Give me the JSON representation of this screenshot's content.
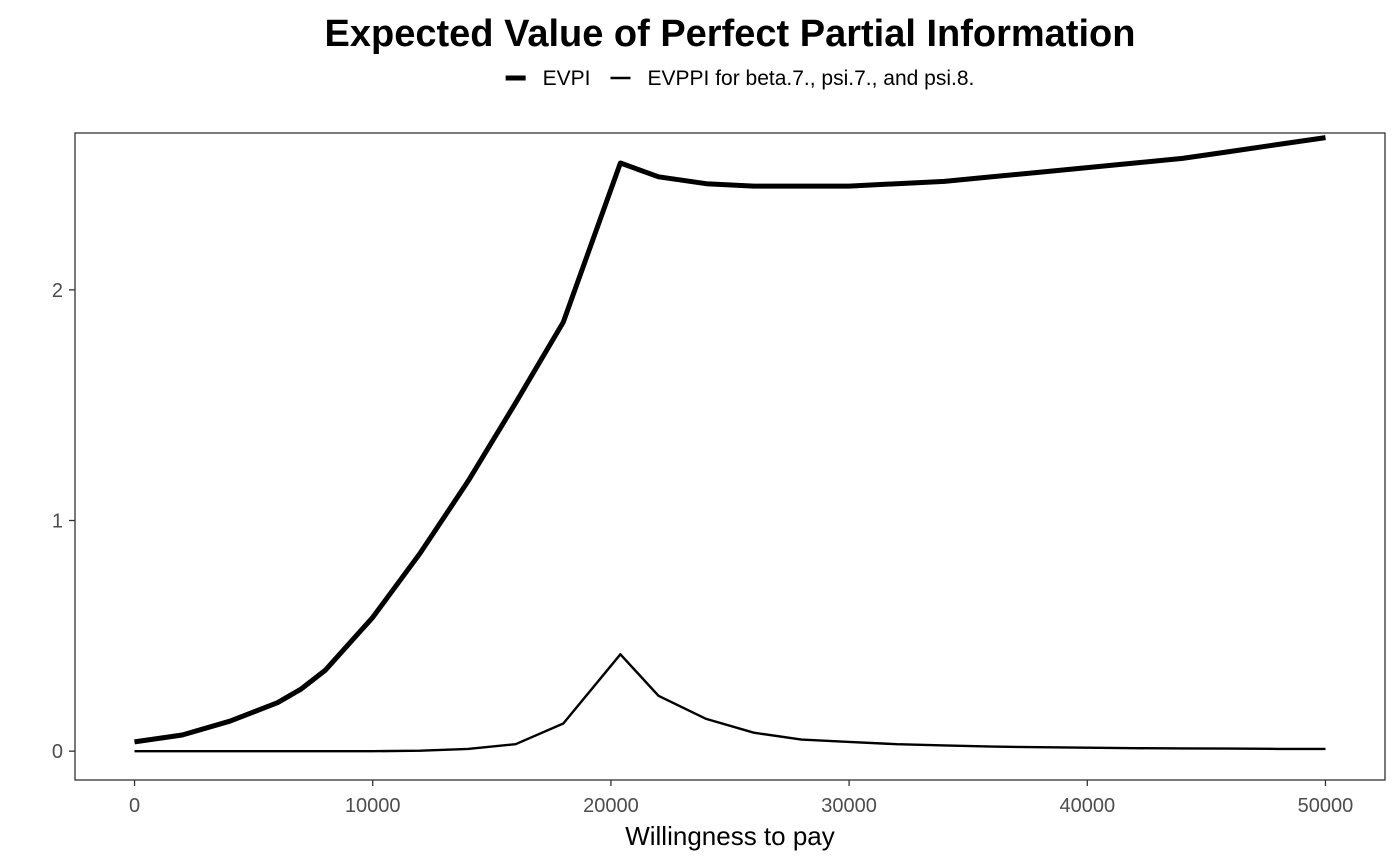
{
  "chart_data": {
    "type": "line",
    "title": "Expected Value of Perfect Partial Information",
    "xlabel": "Willingness to pay",
    "ylabel": "",
    "xlim": [
      -2500,
      52500
    ],
    "ylim": [
      -0.125,
      2.68
    ],
    "x_ticks": [
      0,
      10000,
      20000,
      30000,
      40000,
      50000
    ],
    "x_tick_labels": [
      "0",
      "10000",
      "20000",
      "30000",
      "40000",
      "50000"
    ],
    "y_ticks": [
      0,
      1,
      2
    ],
    "y_tick_labels": [
      "0",
      "1",
      "2"
    ],
    "grid": false,
    "legend_position": "top",
    "x": [
      0,
      2000,
      4000,
      6000,
      7000,
      8000,
      10000,
      12000,
      14000,
      16000,
      18000,
      20400,
      22000,
      24000,
      26000,
      28000,
      30000,
      32000,
      34000,
      36000,
      38000,
      40000,
      42000,
      44000,
      46000,
      48000,
      50000
    ],
    "series": [
      {
        "name": "EVPI",
        "line_width": "thick",
        "color": "#000000",
        "values": [
          0.04,
          0.07,
          0.13,
          0.21,
          0.27,
          0.35,
          0.58,
          0.86,
          1.17,
          1.51,
          1.86,
          2.55,
          2.49,
          2.46,
          2.45,
          2.45,
          2.45,
          2.46,
          2.47,
          2.49,
          2.51,
          2.53,
          2.55,
          2.57,
          2.6,
          2.63,
          2.66
        ]
      },
      {
        "name": "EVPPI for beta.7.,  psi.7., and psi.8.",
        "line_width": "thin",
        "color": "#000000",
        "values": [
          0.0,
          0.0,
          0.0,
          0.0,
          0.0,
          0.0,
          0.0,
          0.002,
          0.01,
          0.03,
          0.12,
          0.42,
          0.24,
          0.14,
          0.08,
          0.05,
          0.04,
          0.03,
          0.025,
          0.02,
          0.017,
          0.015,
          0.013,
          0.012,
          0.011,
          0.01,
          0.01
        ]
      }
    ]
  }
}
